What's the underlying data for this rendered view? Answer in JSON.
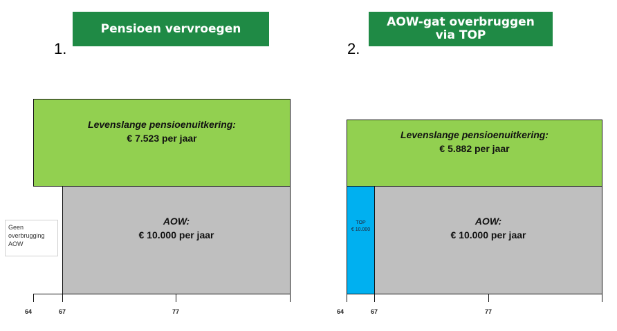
{
  "colors": {
    "banner": "#1f8a45",
    "pension": "#92d050",
    "aow": "#bfbfbf",
    "top": "#00b0f0"
  },
  "panels": [
    {
      "number": "1.",
      "title_lines": [
        "Pensioen vervroegen"
      ],
      "pension_label": "Levenslange pensioenuitkering:",
      "pension_value": "€ 7.523 per jaar",
      "aow_label": "AOW:",
      "aow_value": "€ 10.000 per jaar",
      "side_note": [
        "Geen",
        "overbrugging",
        "AOW"
      ],
      "axis_ticks": [
        "64",
        "67",
        "77"
      ]
    },
    {
      "number": "2.",
      "title_lines": [
        "AOW-gat overbruggen",
        "via TOP"
      ],
      "pension_label": "Levenslange pensioenuitkering:",
      "pension_value": "€ 5.882 per jaar",
      "aow_label": "AOW:",
      "aow_value": "€ 10.000 per jaar",
      "top_label": "TOP",
      "top_value": "€ 10.000",
      "axis_ticks": [
        "64",
        "67",
        "77"
      ]
    }
  ]
}
